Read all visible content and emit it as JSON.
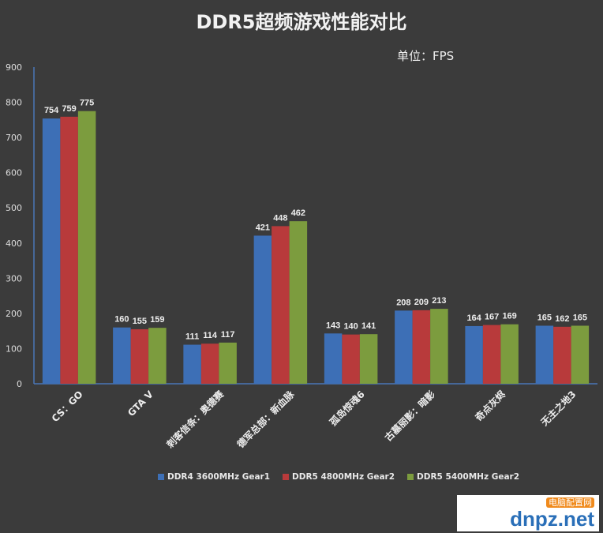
{
  "chart_data": {
    "type": "bar",
    "title": "DDR5超频游戏性能对比",
    "unit_label": "单位：FPS",
    "categories": [
      "CS：GO",
      "GTA V",
      "刺客信条：奥德赛",
      "德军总部：新血脉",
      "孤岛惊魂6",
      "古墓丽影：暗影",
      "奇点灰烬",
      "无主之地3"
    ],
    "series": [
      {
        "name": "DDR4 3600MHz Gear1",
        "color": "#3d6fb6",
        "values": [
          754,
          160,
          111,
          421,
          143,
          208,
          164,
          165
        ]
      },
      {
        "name": "DDR5 4800MHz Gear2",
        "color": "#b83a3b",
        "values": [
          759,
          155,
          114,
          448,
          140,
          209,
          167,
          162
        ]
      },
      {
        "name": "DDR5 5400MHz Gear2",
        "color": "#7c9c3e",
        "values": [
          775,
          159,
          117,
          462,
          141,
          213,
          169,
          165
        ]
      }
    ],
    "ylim": [
      0,
      900
    ],
    "yticks": [
      0,
      100,
      200,
      300,
      400,
      500,
      600,
      700,
      800,
      900
    ],
    "grid": false,
    "legend": "bottom"
  },
  "watermark": {
    "text": "dnpz.net",
    "cn": "电脑配置网"
  }
}
